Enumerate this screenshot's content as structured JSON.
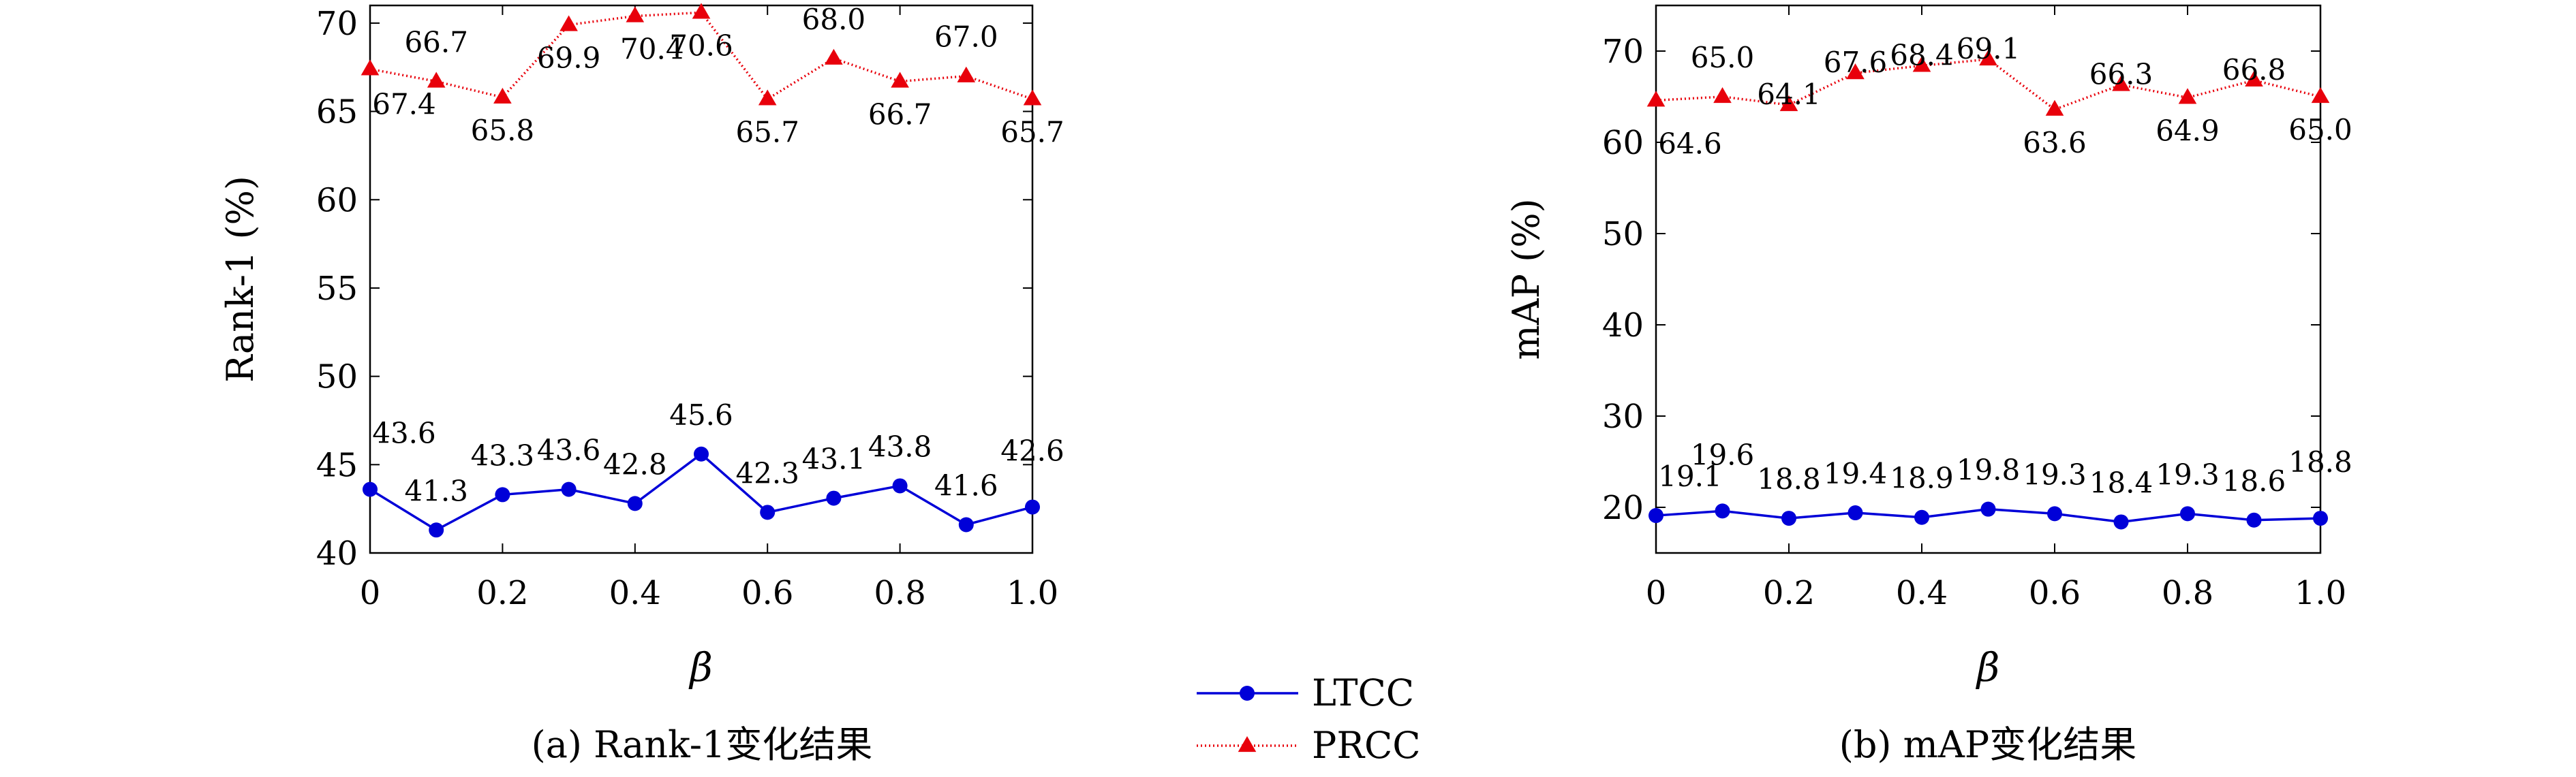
{
  "colors": {
    "LTCC": "#0000d8",
    "PRCC": "#e8000b",
    "axis": "#000000"
  },
  "legend": {
    "placement": "bottom-center",
    "items": [
      {
        "label": "LTCC",
        "marker": "circle",
        "color": "#0000d8",
        "line_style": "solid"
      },
      {
        "label": "PRCC",
        "marker": "triangle",
        "color": "#e8000b",
        "line_style": "dotted"
      }
    ]
  },
  "chart_data": [
    {
      "id": "a",
      "type": "line",
      "caption": "(a) Rank-1变化结果",
      "xlabel": "β",
      "ylabel": "Rank-1 (%)",
      "xlim": [
        0,
        1.0
      ],
      "ylim": [
        40,
        71
      ],
      "xticks": [
        "0",
        "0.2",
        "0.4",
        "0.6",
        "0.8",
        "1.0"
      ],
      "yticks": [
        "40",
        "45",
        "50",
        "55",
        "60",
        "65",
        "70"
      ],
      "grid": false,
      "x": [
        0,
        0.1,
        0.2,
        0.3,
        0.4,
        0.5,
        0.6,
        0.7,
        0.8,
        0.9,
        1.0
      ],
      "series": [
        {
          "name": "LTCC",
          "values": [
            43.6,
            41.3,
            43.3,
            43.6,
            42.8,
            45.6,
            42.3,
            43.1,
            43.8,
            41.6,
            42.6
          ],
          "labels": [
            "43.6",
            "41.3",
            "43.3",
            "43.6",
            "42.8",
            "45.6",
            "42.3",
            "43.1",
            "43.8",
            "41.6",
            "42.6"
          ]
        },
        {
          "name": "PRCC",
          "values": [
            67.4,
            66.7,
            65.8,
            69.9,
            70.4,
            70.6,
            65.7,
            68.0,
            66.7,
            67.0,
            65.7
          ],
          "labels": [
            "67.4",
            "66.7",
            "65.8",
            "69.9",
            "70.4",
            "70.6",
            "65.7",
            "68.0",
            "66.7",
            "67.0",
            "65.7"
          ]
        }
      ]
    },
    {
      "id": "b",
      "type": "line",
      "caption": "(b) mAP变化结果",
      "xlabel": "β",
      "ylabel": "mAP (%)",
      "xlim": [
        0,
        1.0
      ],
      "ylim": [
        15,
        75
      ],
      "xticks": [
        "0",
        "0.2",
        "0.4",
        "0.6",
        "0.8",
        "1.0"
      ],
      "yticks": [
        "20",
        "30",
        "40",
        "50",
        "60",
        "70"
      ],
      "grid": false,
      "x": [
        0,
        0.1,
        0.2,
        0.3,
        0.4,
        0.5,
        0.6,
        0.7,
        0.8,
        0.9,
        1.0
      ],
      "series": [
        {
          "name": "LTCC",
          "values": [
            19.1,
            19.6,
            18.8,
            19.4,
            18.9,
            19.8,
            19.3,
            18.4,
            19.3,
            18.6,
            18.8
          ],
          "labels": [
            "19.1",
            "19.6",
            "18.8",
            "19.4",
            "18.9",
            "19.8",
            "19.3",
            "18.4",
            "19.3",
            "18.6",
            "18.8"
          ]
        },
        {
          "name": "PRCC",
          "values": [
            64.6,
            65.0,
            64.1,
            67.6,
            68.4,
            69.1,
            63.6,
            66.3,
            64.9,
            66.8,
            65.0
          ],
          "labels": [
            "64.6",
            "65.0",
            "64.1",
            "67.6",
            "68.4",
            "69.1",
            "63.6",
            "66.3",
            "64.9",
            "66.8",
            "65.0"
          ]
        }
      ]
    }
  ]
}
